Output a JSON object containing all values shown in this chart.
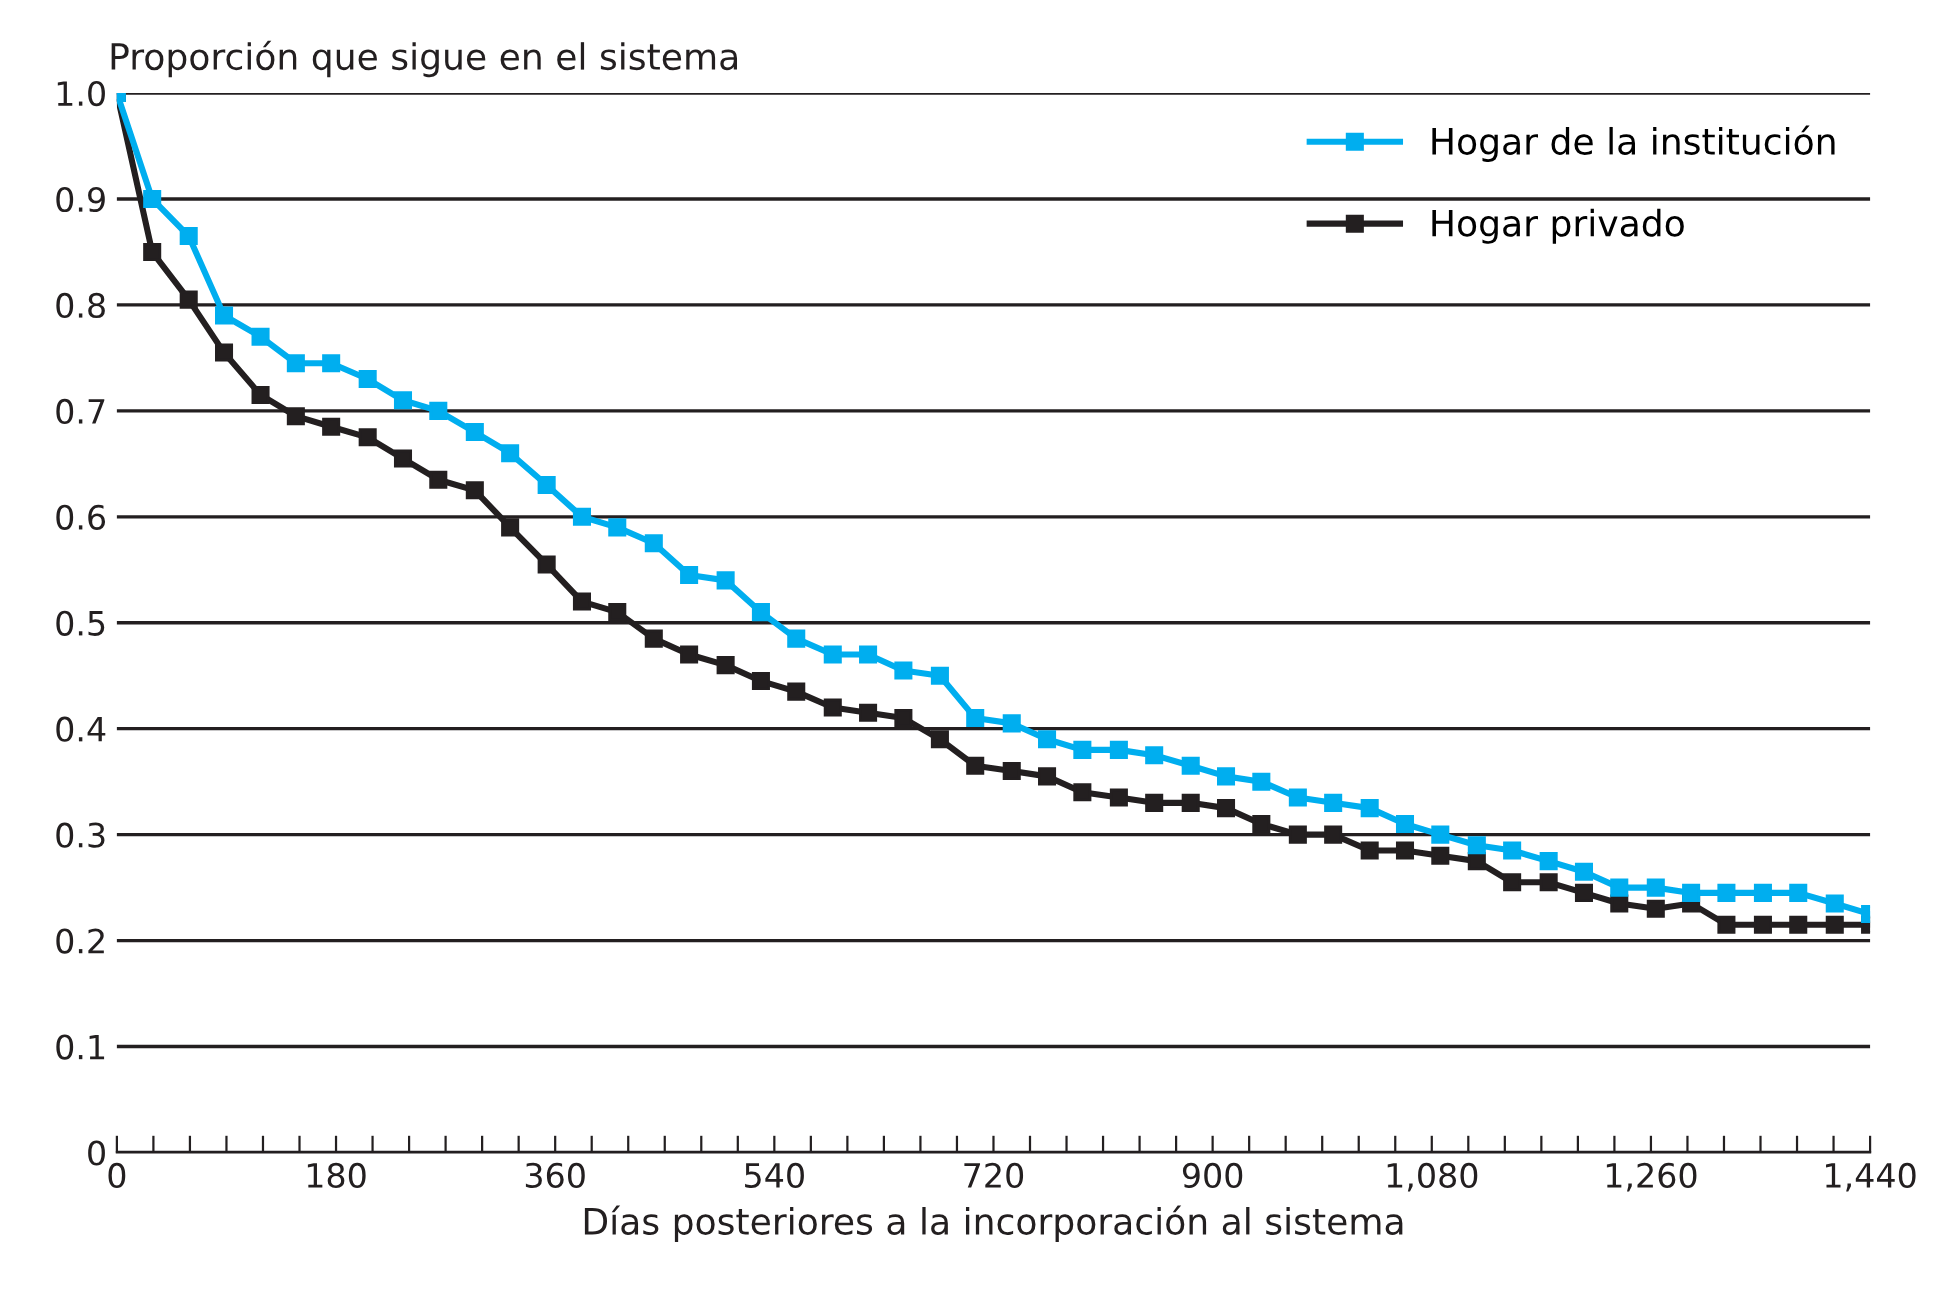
{
  "chart_data": {
    "type": "line",
    "ylabel": "Proporción que sigue en el sistema",
    "xlabel": "Días posteriores a la incorporación al sistema",
    "x": [
      0,
      29,
      59,
      88,
      118,
      147,
      176,
      206,
      235,
      264,
      294,
      323,
      353,
      382,
      411,
      441,
      470,
      500,
      529,
      558,
      588,
      617,
      646,
      676,
      705,
      735,
      764,
      793,
      823,
      852,
      882,
      911,
      940,
      970,
      999,
      1029,
      1058,
      1087,
      1117,
      1146,
      1176,
      1205,
      1234,
      1264,
      1293,
      1322,
      1352,
      1381,
      1411,
      1440
    ],
    "series": [
      {
        "name": "Hogar de la institución",
        "color": "#00aeef",
        "values": [
          1.0,
          0.9,
          0.865,
          0.79,
          0.77,
          0.745,
          0.745,
          0.73,
          0.71,
          0.7,
          0.68,
          0.66,
          0.63,
          0.6,
          0.59,
          0.575,
          0.545,
          0.54,
          0.51,
          0.485,
          0.47,
          0.47,
          0.455,
          0.45,
          0.41,
          0.405,
          0.39,
          0.38,
          0.38,
          0.375,
          0.365,
          0.355,
          0.35,
          0.335,
          0.33,
          0.325,
          0.31,
          0.3,
          0.29,
          0.285,
          0.275,
          0.265,
          0.25,
          0.25,
          0.245,
          0.245,
          0.245,
          0.245,
          0.235,
          0.225
        ]
      },
      {
        "name": "Hogar privado",
        "color": "#231f20",
        "values": [
          1.0,
          0.85,
          0.805,
          0.755,
          0.715,
          0.695,
          0.685,
          0.675,
          0.655,
          0.635,
          0.625,
          0.59,
          0.555,
          0.52,
          0.51,
          0.485,
          0.47,
          0.46,
          0.445,
          0.435,
          0.42,
          0.415,
          0.41,
          0.39,
          0.365,
          0.36,
          0.355,
          0.34,
          0.335,
          0.33,
          0.33,
          0.325,
          0.31,
          0.3,
          0.3,
          0.285,
          0.285,
          0.28,
          0.275,
          0.255,
          0.255,
          0.245,
          0.235,
          0.23,
          0.235,
          0.215,
          0.215,
          0.215,
          0.215,
          0.215
        ]
      }
    ],
    "xlim": [
      0,
      1440
    ],
    "ylim": [
      0,
      1.0
    ],
    "xticks": [
      0,
      {
        "value": 30,
        "label": null
      },
      {
        "value": 60,
        "label": null
      },
      {
        "value": 90,
        "label": null
      },
      {
        "value": 120,
        "label": null
      },
      {
        "value": 150,
        "label": null
      },
      180,
      {
        "value": 210,
        "label": null
      },
      {
        "value": 240,
        "label": null
      },
      {
        "value": 270,
        "label": null
      },
      {
        "value": 300,
        "label": null
      },
      {
        "value": 330,
        "label": null
      },
      360,
      {
        "value": 390,
        "label": null
      },
      {
        "value": 420,
        "label": null
      },
      {
        "value": 450,
        "label": null
      },
      {
        "value": 480,
        "label": null
      },
      {
        "value": 510,
        "label": null
      },
      540,
      {
        "value": 570,
        "label": null
      },
      {
        "value": 600,
        "label": null
      },
      {
        "value": 630,
        "label": null
      },
      {
        "value": 660,
        "label": null
      },
      {
        "value": 690,
        "label": null
      },
      720,
      {
        "value": 750,
        "label": null
      },
      {
        "value": 780,
        "label": null
      },
      {
        "value": 810,
        "label": null
      },
      {
        "value": 840,
        "label": null
      },
      {
        "value": 870,
        "label": null
      },
      900,
      {
        "value": 930,
        "label": null
      },
      {
        "value": 960,
        "label": null
      },
      {
        "value": 990,
        "label": null
      },
      {
        "value": 1020,
        "label": null
      },
      {
        "value": 1050,
        "label": null
      },
      {
        "value": 1080,
        "label": "1,080"
      },
      {
        "value": 1110,
        "label": null
      },
      {
        "value": 1140,
        "label": null
      },
      {
        "value": 1170,
        "label": null
      },
      {
        "value": 1200,
        "label": null
      },
      {
        "value": 1230,
        "label": null
      },
      {
        "value": 1260,
        "label": "1,260"
      },
      {
        "value": 1290,
        "label": null
      },
      {
        "value": 1320,
        "label": null
      },
      {
        "value": 1350,
        "label": null
      },
      {
        "value": 1380,
        "label": null
      },
      {
        "value": 1410,
        "label": null
      },
      {
        "value": 1440,
        "label": "1,440"
      }
    ],
    "yticks": [
      0,
      {
        "value": 0.1,
        "label": "0.1"
      },
      {
        "value": 0.2,
        "label": "0.2"
      },
      {
        "value": 0.3,
        "label": "0.3"
      },
      {
        "value": 0.4,
        "label": "0.4"
      },
      {
        "value": 0.5,
        "label": "0.5"
      },
      {
        "value": 0.6,
        "label": "0.6"
      },
      {
        "value": 0.7,
        "label": "0.7"
      },
      {
        "value": 0.8,
        "label": "0.8"
      },
      {
        "value": 0.9,
        "label": "0.9"
      },
      {
        "value": 1.0,
        "label": "1.0"
      }
    ],
    "grid": "y",
    "legend": "top right",
    "marker": "square",
    "line_style": "solid"
  }
}
